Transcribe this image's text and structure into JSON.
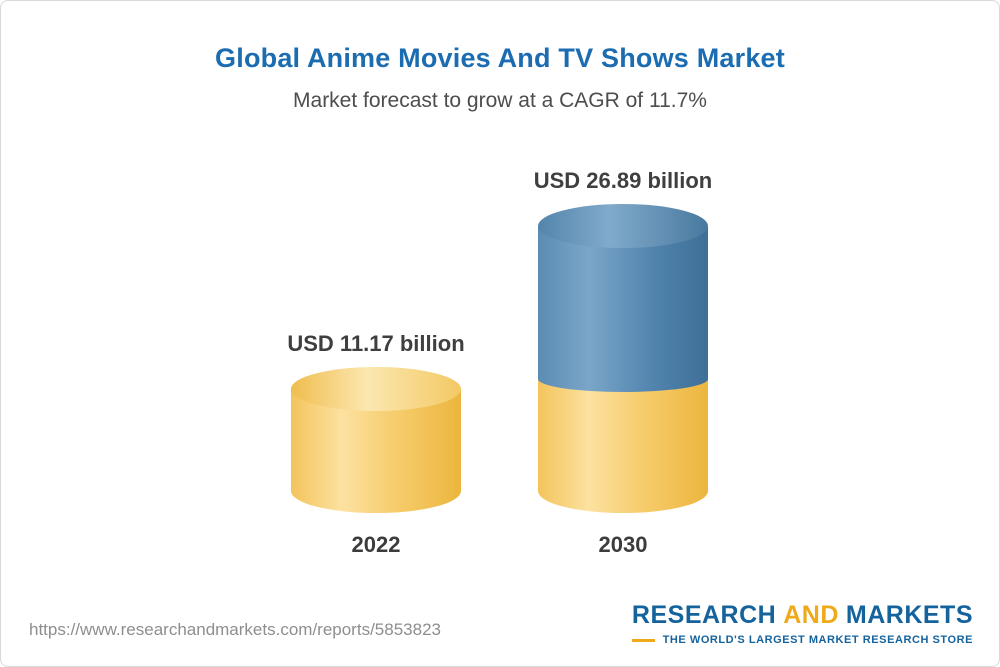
{
  "page": {
    "title": "Global Anime Movies And TV Shows Market",
    "subtitle": "Market forecast to grow at a CAGR of 11.7%"
  },
  "chart_data": {
    "type": "bar",
    "title": "Global Anime Movies And TV Shows Market",
    "subtitle": "Market forecast to grow at a CAGR of 11.7%",
    "cagr_percent": 11.7,
    "unit": "USD billion",
    "categories": [
      "2022",
      "2030"
    ],
    "values": [
      11.17,
      26.89
    ],
    "value_labels": [
      "USD 11.17 billion",
      "USD 26.89 billion"
    ],
    "bar_style": "3d-cylinder",
    "legend": "none",
    "grid": false,
    "ylim": [
      0,
      30
    ],
    "colors": {
      "base_segment": "#F5C863",
      "growth_segment": "#5586AE"
    }
  },
  "footer": {
    "url": "https://www.researchandmarkets.com/reports/5853823",
    "logo": {
      "research": "RESEARCH",
      "and": "AND",
      "markets": "MARKETS",
      "tagline": "THE WORLD'S LARGEST MARKET RESEARCH STORE"
    }
  },
  "colors": {
    "title": "#1B6CB0",
    "subtitle": "#4D4D4D",
    "label": "#3F3F3F",
    "url": "#8E8E8E",
    "logo_blue": "#15639D",
    "logo_gold": "#EFAA1C"
  }
}
